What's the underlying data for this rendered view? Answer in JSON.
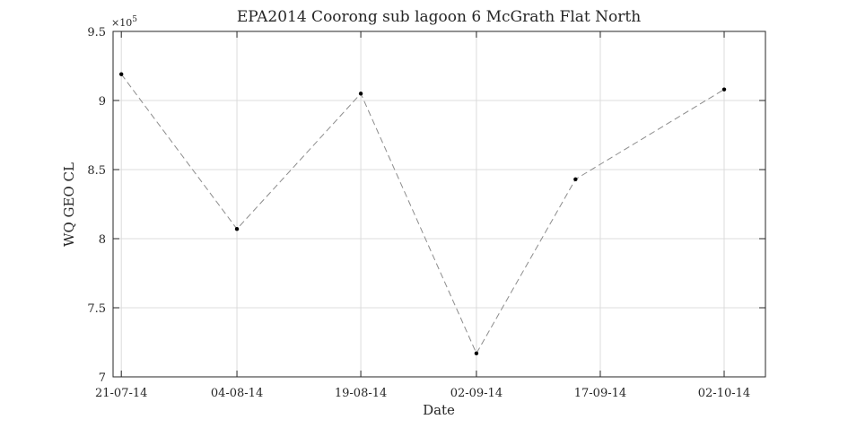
{
  "chart_data": {
    "type": "line",
    "title": "EPA2014 Coorong sub lagoon 6 McGrath Flat North",
    "xlabel": "Date",
    "ylabel": "WQ GEO CL",
    "y_exponent_label": "×10",
    "y_exponent_power": "5",
    "x_tick_labels": [
      "21-07-14",
      "04-08-14",
      "19-08-14",
      "02-09-14",
      "17-09-14",
      "02-10-14"
    ],
    "x_tick_dates": [
      "2014-07-21",
      "2014-08-04",
      "2014-08-19",
      "2014-09-02",
      "2014-09-17",
      "2014-10-02"
    ],
    "y_tick_labels": [
      "7",
      "7.5",
      "8",
      "8.5",
      "9",
      "9.5"
    ],
    "y_tick_values": [
      7.0,
      7.5,
      8.0,
      8.5,
      9.0,
      9.5
    ],
    "xlim": [
      "2014-07-20",
      "2014-10-07"
    ],
    "ylim": [
      7.0,
      9.5
    ],
    "grid": true,
    "series": [
      {
        "x": [
          "2014-07-21",
          "2014-08-04",
          "2014-08-19",
          "2014-09-02",
          "2014-09-14",
          "2014-10-02"
        ],
        "y": [
          9.19,
          8.07,
          9.05,
          7.17,
          8.43,
          9.08
        ]
      }
    ],
    "line_color": "#8c8c8c",
    "marker_color": "#000000",
    "line_style": "dashed"
  }
}
